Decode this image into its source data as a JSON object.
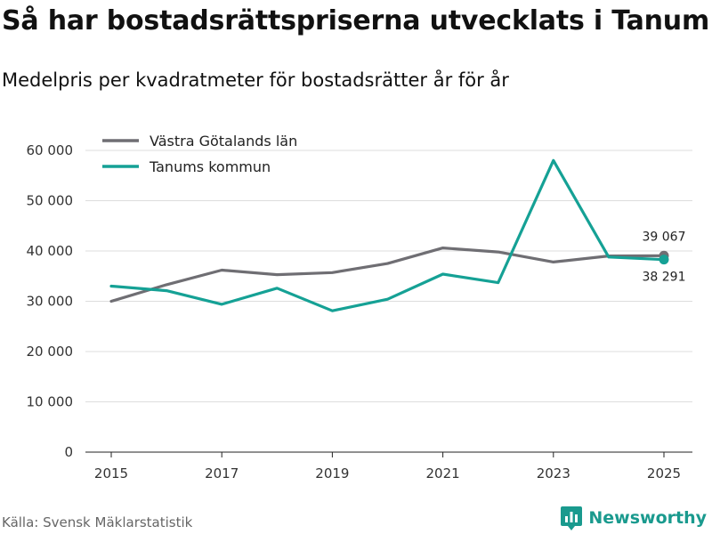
{
  "title": "Så har bostadsrättspriserna utvecklats i Tanum",
  "subtitle": "Medelpris per kvadratmeter för bostadsrätter år för år",
  "source": "Källa: Svensk Mäklarstatistik",
  "brand": "Newsworthy",
  "colors": {
    "series_region": "#6f6e73",
    "series_municipality": "#15a195",
    "grid": "#dddddd",
    "brand": "#1a9a8e"
  },
  "chart_data": {
    "type": "line",
    "title": "Så har bostadsrättspriserna utvecklats i Tanum",
    "subtitle": "Medelpris per kvadratmeter för bostadsrätter år för år",
    "xlabel": "",
    "ylabel": "",
    "x": [
      2015,
      2016,
      2017,
      2018,
      2019,
      2020,
      2021,
      2022,
      2023,
      2024,
      2025
    ],
    "xlim": [
      2015,
      2025
    ],
    "ylim": [
      0,
      60000
    ],
    "x_ticks": [
      2015,
      2017,
      2019,
      2021,
      2023,
      2025
    ],
    "x_tick_labels": [
      "2015",
      "2017",
      "2019",
      "2021",
      "2023",
      "2025"
    ],
    "y_ticks": [
      0,
      10000,
      20000,
      30000,
      40000,
      50000,
      60000
    ],
    "y_tick_labels": [
      "0",
      "10 000",
      "20 000",
      "30 000",
      "40 000",
      "50 000",
      "60 000"
    ],
    "grid": true,
    "legend_position": "top-left",
    "series": [
      {
        "name": "Västra Götalands län",
        "color": "#6f6e73",
        "values": [
          30000,
          33300,
          36200,
          35300,
          35700,
          37500,
          40600,
          39800,
          37800,
          39000,
          39067
        ],
        "end_label": "39 067"
      },
      {
        "name": "Tanums kommun",
        "color": "#15a195",
        "values": [
          33000,
          32100,
          29400,
          32600,
          28100,
          30400,
          35400,
          33700,
          58000,
          38800,
          38291
        ],
        "end_label": "38 291"
      }
    ]
  }
}
